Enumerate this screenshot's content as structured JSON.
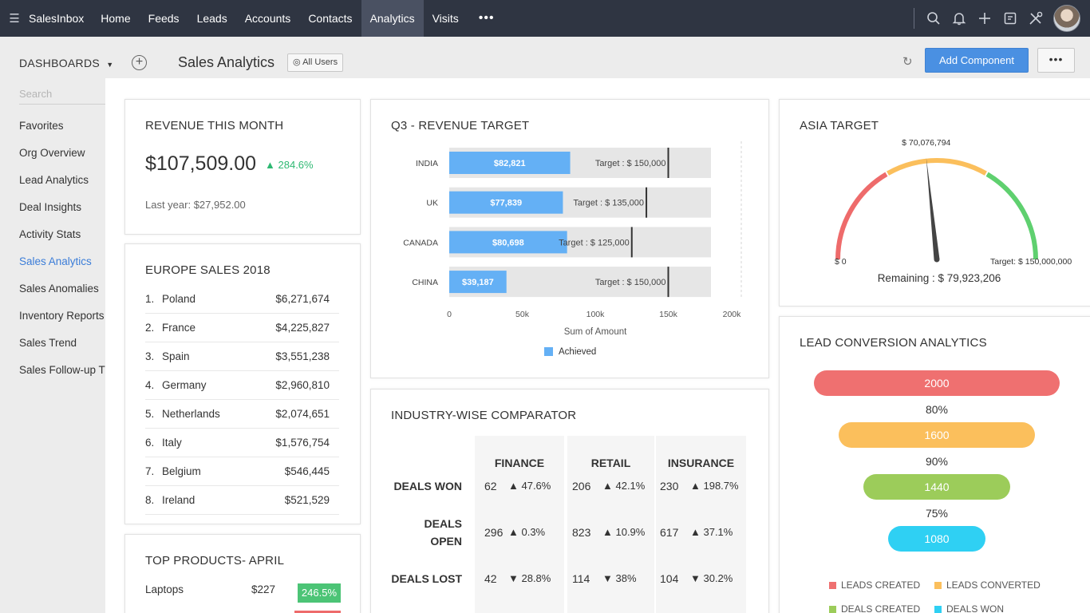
{
  "topnav": {
    "brand": "SalesInbox",
    "items": [
      "Home",
      "Feeds",
      "Leads",
      "Accounts",
      "Contacts",
      "Analytics",
      "Visits"
    ],
    "active": "Analytics",
    "more": "•••"
  },
  "subheader": {
    "dashboards_label": "DASHBOARDS",
    "page_title": "Sales Analytics",
    "all_users": "All Users",
    "add_component": "Add Component",
    "more": "•••"
  },
  "sidebar": {
    "search_placeholder": "Search",
    "items": [
      "Favorites",
      "Org Overview",
      "Lead Analytics",
      "Deal Insights",
      "Activity Stats",
      "Sales Analytics",
      "Sales Anomalies",
      "Inventory Reports",
      "Sales Trend",
      "Sales Follow-up Trends"
    ],
    "active": "Sales Analytics"
  },
  "revenue": {
    "title": "REVENUE THIS MONTH",
    "value": "$107,509.00",
    "change": "284.6%",
    "last_year": "Last year: $27,952.00"
  },
  "europe": {
    "title": "EUROPE SALES 2018",
    "rows": [
      {
        "num": "1.",
        "country": "Poland",
        "value": "$6,271,674"
      },
      {
        "num": "2.",
        "country": "France",
        "value": "$4,225,827"
      },
      {
        "num": "3.",
        "country": "Spain",
        "value": "$3,551,238"
      },
      {
        "num": "4.",
        "country": "Germany",
        "value": "$2,960,810"
      },
      {
        "num": "5.",
        "country": "Netherlands",
        "value": "$2,074,651"
      },
      {
        "num": "6.",
        "country": "Italy",
        "value": "$1,576,754"
      },
      {
        "num": "7.",
        "country": "Belgium",
        "value": "$546,445"
      },
      {
        "num": "8.",
        "country": "Ireland",
        "value": "$521,529"
      }
    ]
  },
  "products": {
    "title": "TOP PRODUCTS- APRIL",
    "rows": [
      {
        "name": "Laptops",
        "value": "$227",
        "change": "246.5%",
        "dir": "up"
      }
    ]
  },
  "q3": {
    "title": "Q3 - REVENUE TARGET",
    "xlabel": "Sum of Amount",
    "legend": "Achieved",
    "ticks": [
      "0",
      "50k",
      "100k",
      "150k",
      "200k"
    ],
    "colors": {
      "achieved": "#64b0f5",
      "target_bg": "#e6e6e6",
      "marker": "#333333"
    }
  },
  "industry": {
    "title": "INDUSTRY-WISE COMPARATOR",
    "columns": [
      "FINANCE",
      "RETAIL",
      "INSURANCE"
    ],
    "rows": [
      {
        "label_1": "DEALS WON",
        "label_2": "",
        "cells": [
          {
            "value": "62",
            "change": "47.6%",
            "dir": "up"
          },
          {
            "value": "206",
            "change": "42.1%",
            "dir": "up"
          },
          {
            "value": "230",
            "change": "198.7%",
            "dir": "up"
          }
        ]
      },
      {
        "label_1": "DEALS",
        "label_2": "OPEN",
        "cells": [
          {
            "value": "296",
            "change": "0.3%",
            "dir": "up"
          },
          {
            "value": "823",
            "change": "10.9%",
            "dir": "up"
          },
          {
            "value": "617",
            "change": "37.1%",
            "dir": "up"
          }
        ]
      },
      {
        "label_1": "DEALS LOST",
        "label_2": "",
        "cells": [
          {
            "value": "42",
            "change": "28.8%",
            "dir": "down"
          },
          {
            "value": "114",
            "change": "38%",
            "dir": "down"
          },
          {
            "value": "104",
            "change": "30.2%",
            "dir": "down"
          }
        ]
      }
    ]
  },
  "asia": {
    "title": "ASIA TARGET",
    "needle_label": "$ 70,076,794",
    "min_label": "$ 0",
    "max_label": "Target: $ 150,000,000",
    "remaining": "Remaining : $ 79,923,206",
    "needle_fraction": 0.467,
    "colors": {
      "low": "#ee6b6b",
      "mid": "#fbbf5c",
      "high": "#5fd06f",
      "needle": "#444444"
    }
  },
  "lead": {
    "title": "LEAD CONVERSION ANALYTICS",
    "stages": [
      {
        "value": "2000",
        "color": "#ef7070"
      },
      {
        "value": "1600",
        "color": "#fbbf5c"
      },
      {
        "value": "1440",
        "color": "#9ccc5a"
      },
      {
        "value": "1080",
        "color": "#2fd0f3"
      }
    ],
    "percents": [
      "80%",
      "90%",
      "75%"
    ],
    "legend": [
      {
        "label": "LEADS CREATED",
        "color": "#ef7070"
      },
      {
        "label": "LEADS CONVERTED",
        "color": "#fbbf5c"
      },
      {
        "label": "DEALS CREATED",
        "color": "#9ccc5a"
      },
      {
        "label": "DEALS WON",
        "color": "#2fd0f3"
      }
    ]
  },
  "chart_data": {
    "type": "bar",
    "title": "Q3 - REVENUE TARGET",
    "xlabel": "Sum of Amount",
    "ylabel": "",
    "xlim": [
      0,
      200000
    ],
    "categories": [
      "INDIA",
      "UK",
      "CANADA",
      "CHINA"
    ],
    "series": [
      {
        "name": "Achieved",
        "values": [
          82821,
          77839,
          80698,
          39187
        ],
        "labels": [
          "$82,821",
          "$77,839",
          "$80,698",
          "$39,187"
        ]
      }
    ],
    "targets": [
      150000,
      135000,
      125000,
      150000
    ],
    "target_labels": [
      "Target : $ 150,000",
      "Target : $ 135,000",
      "Target : $ 125,000",
      "Target : $ 150,000"
    ],
    "legend": "bottom"
  }
}
